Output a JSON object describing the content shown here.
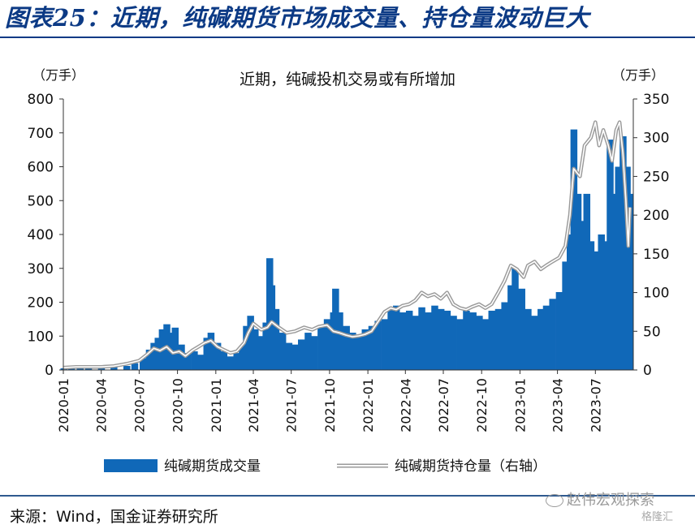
{
  "figure": {
    "title": "图表25：近期，纯碱期货市场成交量、持仓量波动巨大",
    "source": "来源：Wind，国金证券研究所",
    "watermark": "赵伟宏观探索",
    "badge": "格隆汇"
  },
  "colors": {
    "bar": "#1068b8",
    "line": "#9a9a9a",
    "title": "#0c3a85"
  },
  "chart_data": {
    "type": "bar",
    "title": "近期，纯碱投机交易或有所增加",
    "left_unit": "（万手）",
    "right_unit": "（万手）",
    "ylim_left": [
      0,
      800
    ],
    "yticks_left": [
      0,
      100,
      200,
      300,
      400,
      500,
      600,
      700,
      800
    ],
    "ylim_right": [
      0,
      350
    ],
    "yticks_right": [
      0,
      50,
      100,
      150,
      200,
      250,
      300,
      350
    ],
    "xticks": [
      "2020-01",
      "2020-04",
      "2020-07",
      "2020-10",
      "2021-01",
      "2021-04",
      "2021-07",
      "2021-10",
      "2022-01",
      "2022-04",
      "2022-07",
      "2022-10",
      "2023-01",
      "2023-04",
      "2023-07"
    ],
    "legend": {
      "position": "bottom",
      "bar_label": "纯碱期货成交量",
      "line_label": "纯碱期货持仓量（右轴）"
    },
    "series": [
      {
        "name": "纯碱期货成交量",
        "axis": "left",
        "kind": "bar",
        "points": [
          [
            "2020-01-02",
            5
          ],
          [
            "2020-01-20",
            8
          ],
          [
            "2020-02-10",
            6
          ],
          [
            "2020-03-01",
            5
          ],
          [
            "2020-04-01",
            7
          ],
          [
            "2020-05-01",
            9
          ],
          [
            "2020-06-01",
            12
          ],
          [
            "2020-06-20",
            20
          ],
          [
            "2020-07-10",
            35
          ],
          [
            "2020-07-25",
            60
          ],
          [
            "2020-08-05",
            80
          ],
          [
            "2020-08-15",
            95
          ],
          [
            "2020-08-25",
            120
          ],
          [
            "2020-09-05",
            135
          ],
          [
            "2020-09-15",
            110
          ],
          [
            "2020-09-25",
            125
          ],
          [
            "2020-10-10",
            75
          ],
          [
            "2020-10-25",
            50
          ],
          [
            "2020-11-10",
            55
          ],
          [
            "2020-11-25",
            45
          ],
          [
            "2020-12-10",
            95
          ],
          [
            "2020-12-20",
            110
          ],
          [
            "2021-01-05",
            80
          ],
          [
            "2021-01-20",
            55
          ],
          [
            "2021-02-05",
            40
          ],
          [
            "2021-02-20",
            50
          ],
          [
            "2021-03-05",
            70
          ],
          [
            "2021-03-15",
            130
          ],
          [
            "2021-03-25",
            160
          ],
          [
            "2021-04-05",
            120
          ],
          [
            "2021-04-20",
            100
          ],
          [
            "2021-05-01",
            140
          ],
          [
            "2021-05-10",
            330
          ],
          [
            "2021-05-15",
            250
          ],
          [
            "2021-05-25",
            180
          ],
          [
            "2021-06-10",
            110
          ],
          [
            "2021-06-25",
            80
          ],
          [
            "2021-07-10",
            75
          ],
          [
            "2021-07-25",
            90
          ],
          [
            "2021-08-10",
            110
          ],
          [
            "2021-08-25",
            100
          ],
          [
            "2021-09-10",
            130
          ],
          [
            "2021-09-25",
            150
          ],
          [
            "2021-10-10",
            170
          ],
          [
            "2021-10-15",
            240
          ],
          [
            "2021-10-25",
            170
          ],
          [
            "2021-11-10",
            130
          ],
          [
            "2021-11-25",
            110
          ],
          [
            "2021-12-10",
            100
          ],
          [
            "2021-12-25",
            120
          ],
          [
            "2022-01-10",
            130
          ],
          [
            "2022-01-25",
            145
          ],
          [
            "2022-02-10",
            150
          ],
          [
            "2022-02-25",
            180
          ],
          [
            "2022-03-10",
            190
          ],
          [
            "2022-03-25",
            170
          ],
          [
            "2022-04-10",
            175
          ],
          [
            "2022-04-25",
            160
          ],
          [
            "2022-05-10",
            185
          ],
          [
            "2022-05-25",
            170
          ],
          [
            "2022-06-10",
            190
          ],
          [
            "2022-06-25",
            180
          ],
          [
            "2022-07-10",
            175
          ],
          [
            "2022-07-25",
            160
          ],
          [
            "2022-08-10",
            150
          ],
          [
            "2022-08-25",
            175
          ],
          [
            "2022-09-10",
            170
          ],
          [
            "2022-09-25",
            160
          ],
          [
            "2022-10-10",
            150
          ],
          [
            "2022-10-25",
            175
          ],
          [
            "2022-11-10",
            180
          ],
          [
            "2022-11-25",
            200
          ],
          [
            "2022-12-10",
            250
          ],
          [
            "2022-12-20",
            300
          ],
          [
            "2023-01-05",
            240
          ],
          [
            "2023-01-20",
            180
          ],
          [
            "2023-02-05",
            160
          ],
          [
            "2023-02-20",
            180
          ],
          [
            "2023-03-05",
            190
          ],
          [
            "2023-03-20",
            210
          ],
          [
            "2023-04-05",
            230
          ],
          [
            "2023-04-20",
            320
          ],
          [
            "2023-05-01",
            400
          ],
          [
            "2023-05-10",
            710
          ],
          [
            "2023-05-20",
            520
          ],
          [
            "2023-06-01",
            440
          ],
          [
            "2023-06-10",
            520
          ],
          [
            "2023-06-20",
            380
          ],
          [
            "2023-07-01",
            350
          ],
          [
            "2023-07-15",
            400
          ],
          [
            "2023-07-25",
            380
          ],
          [
            "2023-08-05",
            680
          ],
          [
            "2023-08-15",
            520
          ],
          [
            "2023-08-25",
            600
          ],
          [
            "2023-09-05",
            690
          ],
          [
            "2023-09-15",
            600
          ],
          [
            "2023-09-22",
            520
          ]
        ]
      },
      {
        "name": "纯碱期货持仓量（右轴）",
        "axis": "right",
        "kind": "line",
        "points": [
          [
            "2020-01-02",
            3
          ],
          [
            "2020-02-01",
            4
          ],
          [
            "2020-03-01",
            4
          ],
          [
            "2020-04-01",
            4
          ],
          [
            "2020-05-01",
            5
          ],
          [
            "2020-06-01",
            8
          ],
          [
            "2020-07-01",
            12
          ],
          [
            "2020-07-20",
            20
          ],
          [
            "2020-08-05",
            28
          ],
          [
            "2020-08-20",
            25
          ],
          [
            "2020-09-05",
            30
          ],
          [
            "2020-09-20",
            22
          ],
          [
            "2020-10-05",
            24
          ],
          [
            "2020-10-20",
            18
          ],
          [
            "2020-11-05",
            25
          ],
          [
            "2020-11-20",
            30
          ],
          [
            "2020-12-05",
            35
          ],
          [
            "2020-12-20",
            38
          ],
          [
            "2021-01-05",
            30
          ],
          [
            "2021-01-20",
            26
          ],
          [
            "2021-02-05",
            22
          ],
          [
            "2021-02-20",
            24
          ],
          [
            "2021-03-10",
            35
          ],
          [
            "2021-03-20",
            48
          ],
          [
            "2021-04-01",
            60
          ],
          [
            "2021-04-20",
            52
          ],
          [
            "2021-05-05",
            55
          ],
          [
            "2021-05-15",
            62
          ],
          [
            "2021-06-01",
            55
          ],
          [
            "2021-06-20",
            48
          ],
          [
            "2021-07-10",
            50
          ],
          [
            "2021-08-01",
            55
          ],
          [
            "2021-08-20",
            52
          ],
          [
            "2021-09-05",
            56
          ],
          [
            "2021-09-25",
            58
          ],
          [
            "2021-10-10",
            50
          ],
          [
            "2021-10-25",
            48
          ],
          [
            "2021-11-10",
            45
          ],
          [
            "2021-11-25",
            43
          ],
          [
            "2021-12-10",
            44
          ],
          [
            "2021-12-25",
            46
          ],
          [
            "2022-01-10",
            50
          ],
          [
            "2022-01-25",
            62
          ],
          [
            "2022-02-10",
            75
          ],
          [
            "2022-02-25",
            80
          ],
          [
            "2022-03-10",
            78
          ],
          [
            "2022-03-25",
            83
          ],
          [
            "2022-04-10",
            85
          ],
          [
            "2022-04-25",
            90
          ],
          [
            "2022-05-10",
            100
          ],
          [
            "2022-05-25",
            95
          ],
          [
            "2022-06-10",
            98
          ],
          [
            "2022-06-25",
            92
          ],
          [
            "2022-07-10",
            100
          ],
          [
            "2022-07-25",
            85
          ],
          [
            "2022-08-10",
            80
          ],
          [
            "2022-08-25",
            78
          ],
          [
            "2022-09-10",
            82
          ],
          [
            "2022-09-25",
            85
          ],
          [
            "2022-10-10",
            80
          ],
          [
            "2022-10-25",
            85
          ],
          [
            "2022-11-10",
            100
          ],
          [
            "2022-11-25",
            115
          ],
          [
            "2022-12-10",
            135
          ],
          [
            "2022-12-25",
            130
          ],
          [
            "2023-01-10",
            120
          ],
          [
            "2023-01-20",
            135
          ],
          [
            "2023-02-05",
            140
          ],
          [
            "2023-02-20",
            130
          ],
          [
            "2023-03-05",
            135
          ],
          [
            "2023-03-20",
            140
          ],
          [
            "2023-04-05",
            145
          ],
          [
            "2023-04-20",
            160
          ],
          [
            "2023-05-01",
            200
          ],
          [
            "2023-05-10",
            260
          ],
          [
            "2023-05-25",
            250
          ],
          [
            "2023-06-05",
            290
          ],
          [
            "2023-06-20",
            300
          ],
          [
            "2023-07-01",
            320
          ],
          [
            "2023-07-10",
            290
          ],
          [
            "2023-07-20",
            310
          ],
          [
            "2023-08-01",
            290
          ],
          [
            "2023-08-10",
            270
          ],
          [
            "2023-08-20",
            310
          ],
          [
            "2023-08-28",
            320
          ],
          [
            "2023-09-05",
            280
          ],
          [
            "2023-09-12",
            220
          ],
          [
            "2023-09-18",
            160
          ],
          [
            "2023-09-22",
            210
          ]
        ]
      }
    ]
  }
}
